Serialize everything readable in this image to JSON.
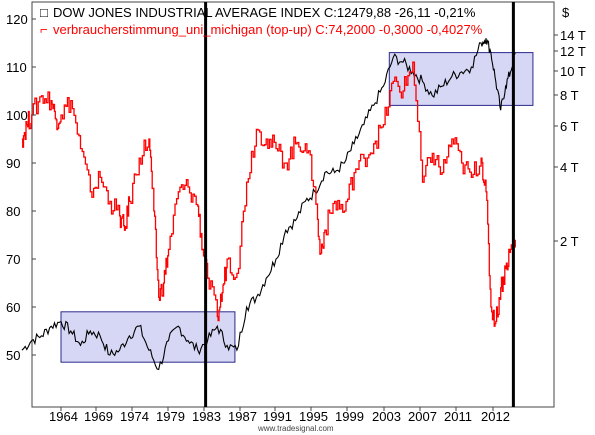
{
  "chart_data": {
    "type": "line",
    "credit": "www.tradesignal.com",
    "legend": [
      {
        "marker": "□",
        "text": "DOW JONES INDUSTRIAL AVERAGE INDEX C:12479,88 -26,11 -0,21%",
        "color": "#000000"
      },
      {
        "marker": "⌐",
        "text": "verbraucherstimmung_uni_michigan (top-up) C:74,2000 -0,3000 -0,4027%",
        "color": "#ff0000"
      }
    ],
    "x_ticks": [
      "1964",
      "1969",
      "1974",
      "1979",
      "1983",
      "1987",
      "1991",
      "1995",
      "1999",
      "2003",
      "2007",
      "2011",
      "2012"
    ],
    "left_axis": {
      "ticks": [
        50,
        60,
        70,
        80,
        90,
        100,
        110,
        120
      ],
      "range": [
        40,
        125
      ]
    },
    "right_axis": {
      "unit": "$",
      "ticks": [
        "2 T",
        "4 T",
        "6 T",
        "8 T",
        "10 T",
        "12 T",
        "14 T"
      ]
    },
    "highlight_boxes": [
      {
        "from": 1964,
        "to": 1981.8,
        "y_range": [
          48.5,
          59
        ]
      },
      {
        "from": 1997.6,
        "to": 2012.3,
        "y_range": [
          102,
          113
        ]
      }
    ],
    "vertical_markers": [
      1978.8,
      2010.3
    ],
    "colors": {
      "dow": "#000000",
      "sentiment": "#ff0000",
      "box_fill": "#d6d6f5",
      "box_stroke": "#2a2a8a"
    },
    "series": [
      {
        "name": "DOW JONES INDUSTRIAL AVERAGE INDEX",
        "color": "#000000",
        "x": [
          1960.0,
          1961.0,
          1962.0,
          1963.0,
          1964.0,
          1965.0,
          1966.0,
          1967.0,
          1968.0,
          1969.0,
          1970.0,
          1971.0,
          1972.0,
          1973.0,
          1974.0,
          1975.0,
          1976.0,
          1977.0,
          1978.0,
          1979.0,
          1980.0,
          1981.0,
          1982.0,
          1983.0,
          1984.0,
          1985.0,
          1986.0,
          1987.0,
          1988.0,
          1989.0,
          1990.0,
          1991.0,
          1992.0,
          1993.0,
          1994.0,
          1995.0,
          1996.0,
          1997.0,
          1998.0,
          1999.0,
          2000.0,
          2001.0,
          2002.0,
          2003.0,
          2004.0,
          2005.0,
          2006.0,
          2007.0,
          2007.5,
          2008.0,
          2008.5,
          2009.0,
          2009.5,
          2010.0,
          2010.5
        ],
        "values": [
          51,
          53,
          54,
          56,
          57,
          55,
          52,
          55,
          54,
          50,
          51,
          54,
          56,
          51,
          47,
          53,
          56,
          53,
          51,
          53,
          56,
          52,
          51,
          60,
          62,
          66,
          70,
          76,
          78,
          82,
          84,
          88,
          88,
          90,
          94,
          98,
          102,
          106,
          112,
          111,
          109,
          107,
          104,
          106,
          108,
          109,
          110,
          115,
          116,
          113,
          107,
          101,
          106,
          109,
          113
        ]
      },
      {
        "name": "verbraucherstimmung_uni_michigan (top-up)",
        "color": "#ff0000",
        "x": [
          1960.0,
          1960.5,
          1961.0,
          1962.0,
          1963.0,
          1963.5,
          1964.0,
          1965.0,
          1966.0,
          1967.0,
          1968.0,
          1969.0,
          1970.0,
          1970.5,
          1971.0,
          1972.0,
          1973.0,
          1973.5,
          1974.0,
          1974.5,
          1975.0,
          1976.0,
          1977.0,
          1978.0,
          1978.5,
          1979.0,
          1980.0,
          1980.5,
          1981.0,
          1982.0,
          1983.0,
          1984.0,
          1985.0,
          1986.0,
          1987.0,
          1988.0,
          1989.0,
          1990.0,
          1990.5,
          1991.0,
          1992.0,
          1993.0,
          1994.0,
          1995.0,
          1996.0,
          1997.0,
          1998.0,
          1999.0,
          2000.0,
          2001.0,
          2002.0,
          2003.0,
          2004.0,
          2005.0,
          2006.0,
          2007.0,
          2007.5,
          2008.0,
          2008.5,
          2009.0,
          2009.5,
          2010.0,
          2010.5
        ],
        "values": [
          95,
          98,
          100,
          104,
          103,
          99,
          100,
          103,
          93,
          84,
          87,
          82,
          79,
          76,
          82,
          91,
          95,
          80,
          62,
          65,
          72,
          84,
          85,
          81,
          72,
          66,
          58,
          63,
          70,
          67,
          86,
          97,
          95,
          93,
          90,
          94,
          94,
          85,
          71,
          76,
          82,
          80,
          88,
          91,
          94,
          98,
          107,
          105,
          111,
          86,
          92,
          88,
          95,
          90,
          87,
          91,
          84,
          60,
          57,
          64,
          68,
          72,
          74
        ]
      }
    ]
  }
}
